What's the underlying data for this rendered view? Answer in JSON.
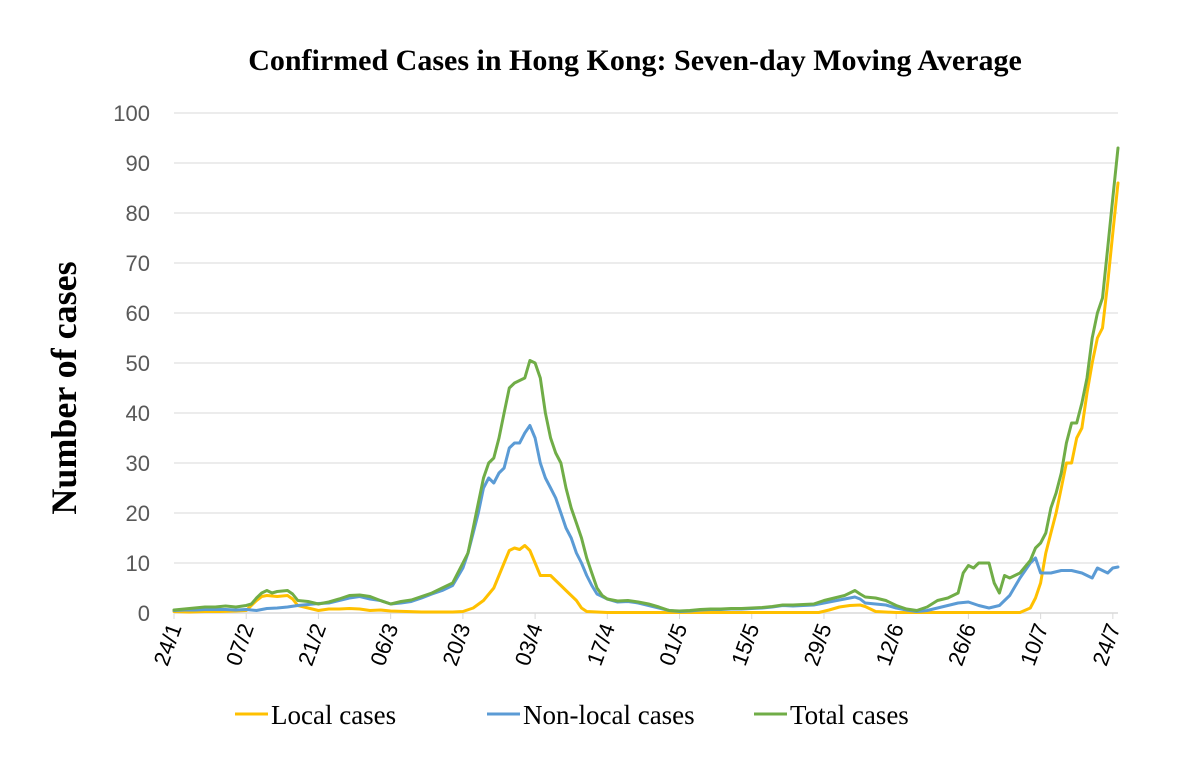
{
  "chart_data": {
    "type": "line",
    "title": "Confirmed Cases in Hong Kong: Seven-day Moving Average",
    "ylabel": "Number of cases",
    "xlabel": "",
    "ylim": [
      0,
      100
    ],
    "yticks": [
      0,
      10,
      20,
      30,
      40,
      50,
      60,
      70,
      80,
      90,
      100
    ],
    "grid": true,
    "legend_position": "bottom",
    "x_tick_labels": [
      "24/1",
      "07/2",
      "21/2",
      "06/3",
      "20/3",
      "03/4",
      "17/4",
      "01/5",
      "15/5",
      "29/5",
      "12/6",
      "26/6",
      "10/7",
      "24/7"
    ],
    "x_tick_day_index": [
      0,
      14,
      28,
      42,
      56,
      70,
      84,
      98,
      112,
      126,
      140,
      154,
      168,
      182
    ],
    "series": [
      {
        "name": "Local cases",
        "color": "#FFC000",
        "points": [
          [
            0,
            0.3
          ],
          [
            3,
            0.2
          ],
          [
            6,
            0.3
          ],
          [
            9,
            0.3
          ],
          [
            12,
            0.4
          ],
          [
            14,
            0.5
          ],
          [
            16,
            2.5
          ],
          [
            17,
            3.3
          ],
          [
            18,
            3.5
          ],
          [
            20,
            3.3
          ],
          [
            22,
            3.5
          ],
          [
            23,
            2.8
          ],
          [
            24,
            1.5
          ],
          [
            26,
            1.0
          ],
          [
            28,
            0.5
          ],
          [
            30,
            0.8
          ],
          [
            32,
            0.8
          ],
          [
            34,
            0.9
          ],
          [
            36,
            0.8
          ],
          [
            38,
            0.5
          ],
          [
            40,
            0.6
          ],
          [
            42,
            0.4
          ],
          [
            45,
            0.3
          ],
          [
            48,
            0.2
          ],
          [
            51,
            0.2
          ],
          [
            54,
            0.2
          ],
          [
            56,
            0.3
          ],
          [
            58,
            1.0
          ],
          [
            60,
            2.5
          ],
          [
            62,
            5
          ],
          [
            64,
            10
          ],
          [
            65,
            12.5
          ],
          [
            66,
            13
          ],
          [
            67,
            12.7
          ],
          [
            68,
            13.5
          ],
          [
            69,
            12.5
          ],
          [
            70,
            10
          ],
          [
            71,
            7.5
          ],
          [
            72,
            7.5
          ],
          [
            73,
            7.5
          ],
          [
            74,
            6.5
          ],
          [
            75,
            5.5
          ],
          [
            76,
            4.5
          ],
          [
            77,
            3.5
          ],
          [
            78,
            2.5
          ],
          [
            79,
            1.0
          ],
          [
            80,
            0.3
          ],
          [
            84,
            0.1
          ],
          [
            90,
            0.1
          ],
          [
            98,
            0.1
          ],
          [
            105,
            0.1
          ],
          [
            112,
            0.1
          ],
          [
            120,
            0.1
          ],
          [
            125,
            0.1
          ],
          [
            127,
            0.6
          ],
          [
            129,
            1.2
          ],
          [
            131,
            1.5
          ],
          [
            133,
            1.6
          ],
          [
            134,
            1.3
          ],
          [
            135,
            0.8
          ],
          [
            136,
            0.3
          ],
          [
            140,
            0.1
          ],
          [
            150,
            0.1
          ],
          [
            160,
            0.1
          ],
          [
            164,
            0.1
          ],
          [
            166,
            1.0
          ],
          [
            167,
            3.0
          ],
          [
            168,
            6.0
          ],
          [
            169,
            12
          ],
          [
            170,
            16
          ],
          [
            171,
            20
          ],
          [
            172,
            25
          ],
          [
            173,
            30
          ],
          [
            174,
            30
          ],
          [
            175,
            35
          ],
          [
            176,
            37
          ],
          [
            177,
            44
          ],
          [
            178,
            50
          ],
          [
            179,
            55
          ],
          [
            180,
            57
          ],
          [
            181,
            66
          ],
          [
            182,
            76
          ],
          [
            183,
            86
          ]
        ]
      },
      {
        "name": "Non-local cases",
        "color": "#5B9BD5",
        "points": [
          [
            0,
            0.5
          ],
          [
            2,
            0.6
          ],
          [
            4,
            0.6
          ],
          [
            6,
            0.7
          ],
          [
            8,
            0.7
          ],
          [
            10,
            0.7
          ],
          [
            12,
            0.6
          ],
          [
            14,
            0.7
          ],
          [
            16,
            0.5
          ],
          [
            18,
            0.9
          ],
          [
            20,
            1.0
          ],
          [
            22,
            1.2
          ],
          [
            24,
            1.5
          ],
          [
            26,
            1.7
          ],
          [
            28,
            1.9
          ],
          [
            30,
            2.0
          ],
          [
            32,
            2.5
          ],
          [
            34,
            3.0
          ],
          [
            36,
            3.3
          ],
          [
            38,
            2.8
          ],
          [
            40,
            2.5
          ],
          [
            42,
            1.8
          ],
          [
            44,
            2.0
          ],
          [
            46,
            2.3
          ],
          [
            48,
            3.0
          ],
          [
            50,
            3.8
          ],
          [
            52,
            4.5
          ],
          [
            54,
            5.5
          ],
          [
            56,
            9
          ],
          [
            57,
            12
          ],
          [
            58,
            16
          ],
          [
            59,
            20
          ],
          [
            60,
            25
          ],
          [
            61,
            27
          ],
          [
            62,
            26
          ],
          [
            63,
            28
          ],
          [
            64,
            29
          ],
          [
            65,
            33
          ],
          [
            66,
            34
          ],
          [
            67,
            34
          ],
          [
            68,
            36
          ],
          [
            69,
            37.5
          ],
          [
            70,
            35
          ],
          [
            71,
            30
          ],
          [
            72,
            27
          ],
          [
            73,
            25
          ],
          [
            74,
            23
          ],
          [
            75,
            20
          ],
          [
            76,
            17
          ],
          [
            77,
            15
          ],
          [
            78,
            12
          ],
          [
            79,
            10
          ],
          [
            80,
            7.5
          ],
          [
            81,
            5.5
          ],
          [
            82,
            3.8
          ],
          [
            84,
            2.8
          ],
          [
            86,
            2.2
          ],
          [
            88,
            2.3
          ],
          [
            90,
            2.0
          ],
          [
            92,
            1.5
          ],
          [
            94,
            1.0
          ],
          [
            96,
            0.5
          ],
          [
            98,
            0.3
          ],
          [
            100,
            0.4
          ],
          [
            102,
            0.6
          ],
          [
            104,
            0.7
          ],
          [
            106,
            0.7
          ],
          [
            108,
            0.8
          ],
          [
            110,
            0.8
          ],
          [
            112,
            0.9
          ],
          [
            114,
            1.0
          ],
          [
            116,
            1.2
          ],
          [
            118,
            1.5
          ],
          [
            120,
            1.4
          ],
          [
            122,
            1.5
          ],
          [
            124,
            1.6
          ],
          [
            126,
            2.0
          ],
          [
            128,
            2.4
          ],
          [
            130,
            2.8
          ],
          [
            131,
            3.0
          ],
          [
            132,
            3.2
          ],
          [
            133,
            2.8
          ],
          [
            134,
            2.0
          ],
          [
            136,
            1.8
          ],
          [
            138,
            1.6
          ],
          [
            140,
            1.0
          ],
          [
            142,
            0.6
          ],
          [
            144,
            0.3
          ],
          [
            146,
            0.5
          ],
          [
            148,
            1.0
          ],
          [
            150,
            1.5
          ],
          [
            152,
            2.0
          ],
          [
            154,
            2.2
          ],
          [
            156,
            1.5
          ],
          [
            158,
            1.0
          ],
          [
            160,
            1.5
          ],
          [
            162,
            3.5
          ],
          [
            164,
            7
          ],
          [
            166,
            10
          ],
          [
            167,
            11
          ],
          [
            168,
            8
          ],
          [
            170,
            8
          ],
          [
            172,
            8.5
          ],
          [
            174,
            8.5
          ],
          [
            176,
            8
          ],
          [
            178,
            7
          ],
          [
            179,
            9
          ],
          [
            180,
            8.5
          ],
          [
            181,
            8
          ],
          [
            182,
            9
          ],
          [
            183,
            9.2
          ]
        ]
      },
      {
        "name": "Total cases",
        "color": "#70AD47",
        "points": [
          [
            0,
            0.6
          ],
          [
            2,
            0.8
          ],
          [
            4,
            1.0
          ],
          [
            6,
            1.2
          ],
          [
            8,
            1.2
          ],
          [
            10,
            1.4
          ],
          [
            12,
            1.2
          ],
          [
            14,
            1.5
          ],
          [
            15,
            1.8
          ],
          [
            16,
            3.0
          ],
          [
            17,
            4.0
          ],
          [
            18,
            4.5
          ],
          [
            19,
            4.0
          ],
          [
            20,
            4.3
          ],
          [
            22,
            4.5
          ],
          [
            23,
            3.8
          ],
          [
            24,
            2.5
          ],
          [
            26,
            2.3
          ],
          [
            28,
            1.8
          ],
          [
            30,
            2.2
          ],
          [
            32,
            2.8
          ],
          [
            34,
            3.5
          ],
          [
            36,
            3.6
          ],
          [
            38,
            3.3
          ],
          [
            40,
            2.5
          ],
          [
            42,
            1.8
          ],
          [
            44,
            2.3
          ],
          [
            46,
            2.6
          ],
          [
            48,
            3.3
          ],
          [
            50,
            4.0
          ],
          [
            52,
            5.0
          ],
          [
            54,
            6.0
          ],
          [
            56,
            10
          ],
          [
            57,
            12
          ],
          [
            58,
            17
          ],
          [
            59,
            22
          ],
          [
            60,
            27
          ],
          [
            61,
            30
          ],
          [
            62,
            31
          ],
          [
            63,
            35
          ],
          [
            64,
            40
          ],
          [
            65,
            45
          ],
          [
            66,
            46
          ],
          [
            67,
            46.5
          ],
          [
            68,
            47
          ],
          [
            69,
            50.5
          ],
          [
            70,
            50
          ],
          [
            71,
            47
          ],
          [
            72,
            40
          ],
          [
            73,
            35
          ],
          [
            74,
            32
          ],
          [
            75,
            30
          ],
          [
            76,
            25
          ],
          [
            77,
            21
          ],
          [
            78,
            18
          ],
          [
            79,
            15
          ],
          [
            80,
            11
          ],
          [
            81,
            8
          ],
          [
            82,
            5
          ],
          [
            83,
            3.5
          ],
          [
            84,
            2.8
          ],
          [
            86,
            2.4
          ],
          [
            88,
            2.5
          ],
          [
            90,
            2.2
          ],
          [
            92,
            1.8
          ],
          [
            94,
            1.2
          ],
          [
            96,
            0.5
          ],
          [
            98,
            0.4
          ],
          [
            100,
            0.5
          ],
          [
            102,
            0.7
          ],
          [
            104,
            0.8
          ],
          [
            106,
            0.8
          ],
          [
            108,
            0.9
          ],
          [
            110,
            0.9
          ],
          [
            112,
            1.0
          ],
          [
            114,
            1.1
          ],
          [
            116,
            1.3
          ],
          [
            118,
            1.6
          ],
          [
            120,
            1.6
          ],
          [
            122,
            1.7
          ],
          [
            124,
            1.8
          ],
          [
            126,
            2.5
          ],
          [
            128,
            3.0
          ],
          [
            130,
            3.5
          ],
          [
            131,
            4.0
          ],
          [
            132,
            4.5
          ],
          [
            133,
            3.8
          ],
          [
            134,
            3.2
          ],
          [
            136,
            3.0
          ],
          [
            138,
            2.5
          ],
          [
            140,
            1.5
          ],
          [
            142,
            0.8
          ],
          [
            144,
            0.5
          ],
          [
            146,
            1.2
          ],
          [
            148,
            2.5
          ],
          [
            150,
            3.0
          ],
          [
            152,
            4.0
          ],
          [
            153,
            8.0
          ],
          [
            154,
            9.5
          ],
          [
            155,
            9.0
          ],
          [
            156,
            10
          ],
          [
            158,
            10
          ],
          [
            159,
            6
          ],
          [
            160,
            4
          ],
          [
            161,
            7.5
          ],
          [
            162,
            7.0
          ],
          [
            164,
            8
          ],
          [
            166,
            10.5
          ],
          [
            167,
            13
          ],
          [
            168,
            14
          ],
          [
            169,
            16
          ],
          [
            170,
            21
          ],
          [
            171,
            24
          ],
          [
            172,
            28
          ],
          [
            173,
            34
          ],
          [
            174,
            38
          ],
          [
            175,
            38
          ],
          [
            176,
            42
          ],
          [
            177,
            47
          ],
          [
            178,
            55
          ],
          [
            179,
            60
          ],
          [
            180,
            63
          ],
          [
            181,
            73
          ],
          [
            182,
            83
          ],
          [
            183,
            93
          ]
        ]
      }
    ]
  }
}
